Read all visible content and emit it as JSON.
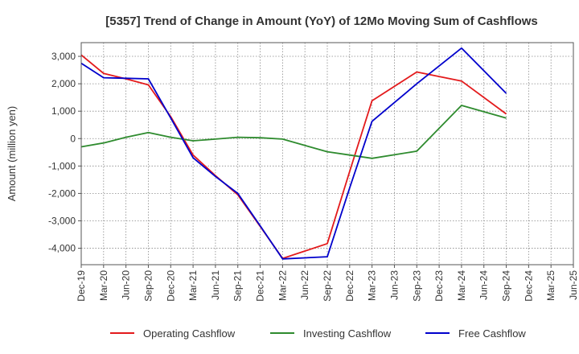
{
  "chart_data": {
    "type": "line",
    "title": "[5357]  Trend of Change in Amount (YoY) of 12Mo Moving Sum of Cashflows",
    "xlabel": "",
    "ylabel": "Amount (million yen)",
    "ylim": [
      -4600,
      3500
    ],
    "yticks": [
      3000,
      2000,
      1000,
      0,
      -1000,
      -2000,
      -3000,
      -4000
    ],
    "ytick_labels": [
      "3,000",
      "2,000",
      "1,000",
      "0",
      "-1,000",
      "-2,000",
      "-3,000",
      "-4,000"
    ],
    "categories": [
      "Dec-19",
      "Mar-20",
      "Jun-20",
      "Sep-20",
      "Dec-20",
      "Mar-21",
      "Jun-21",
      "Sep-21",
      "Dec-21",
      "Mar-22",
      "Jun-22",
      "Sep-22",
      "Dec-22",
      "Mar-23",
      "Jun-23",
      "Sep-23",
      "Dec-23",
      "Mar-24",
      "Jun-24",
      "Sep-24",
      "Dec-24",
      "Mar-25"
    ],
    "tick_labels": [
      "Dec-19",
      "Mar-20",
      "Jun-20",
      "Sep-20",
      "Dec-20",
      "Mar-21",
      "Jun-21",
      "Sep-21",
      "Dec-21",
      "Mar-22",
      "Jun-22",
      "Sep-22",
      "Dec-22",
      "Mar-23",
      "Jun-23",
      "Sep-23",
      "Dec-23",
      "Mar-24",
      "Jun-24",
      "Sep-24",
      "Dec-24",
      "Mar-25",
      "Jun-25"
    ],
    "grid": true,
    "legend_position": "bottom",
    "series": [
      {
        "name": "Operating Cashflow",
        "color": "#e31a1c",
        "values": [
          3050,
          2380,
          2180,
          1960,
          800,
          -600,
          -1350,
          -2050,
          -3200,
          -4370,
          -4100,
          -3830,
          -1200,
          1380,
          null,
          2430,
          null,
          2100,
          null,
          900,
          null,
          null
        ]
      },
      {
        "name": "Investing Cashflow",
        "color": "#2e8b2e",
        "values": [
          -300,
          -160,
          50,
          220,
          50,
          -80,
          -20,
          50,
          30,
          -20,
          null,
          -480,
          -600,
          -720,
          null,
          -460,
          null,
          1210,
          null,
          750,
          null,
          null
        ]
      },
      {
        "name": "Free Cashflow",
        "color": "#0000cc",
        "values": [
          2750,
          2220,
          2200,
          2180,
          750,
          -700,
          -1380,
          -2000,
          -3180,
          -4390,
          -4350,
          -4310,
          -1800,
          630,
          null,
          2000,
          null,
          3300,
          null,
          1650,
          null,
          null
        ]
      }
    ]
  }
}
